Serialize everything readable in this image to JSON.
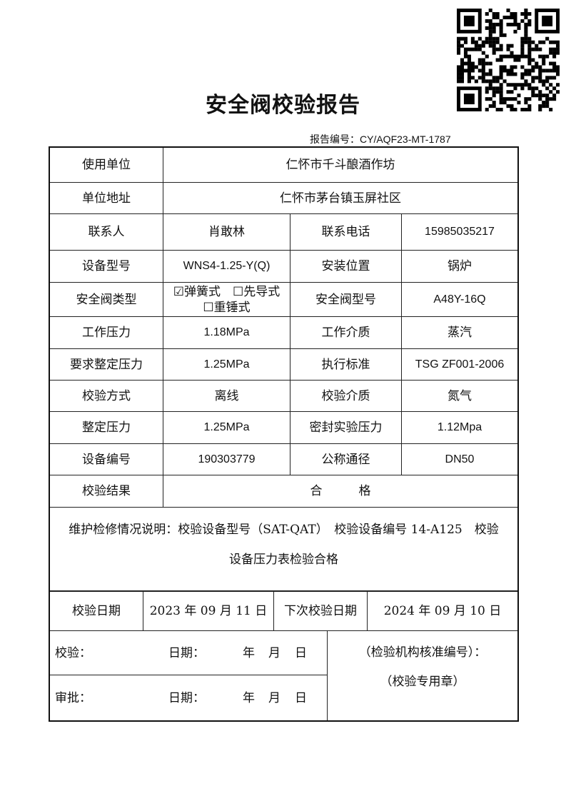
{
  "title": "安全阀校验报告",
  "report_no_label": "报告编号：",
  "report_no": "CY/AQF23-MT-1787",
  "rows": {
    "unit_label": "使用单位",
    "unit": "仁怀市千斗酿酒作坊",
    "address_label": "单位地址",
    "address": "仁怀市茅台镇玉屏社区",
    "contact_label": "联系人",
    "contact": "肖敢林",
    "phone_label": "联系电话",
    "phone": "15985035217",
    "model_label": "设备型号",
    "model": "WNS4-1.25-Y(Q)",
    "location_label": "安装位置",
    "location": "锅炉",
    "valve_type_label": "安全阀类型",
    "valve_type_options": [
      "弹簧式",
      "先导式",
      "重锤式"
    ],
    "valve_type_checked": "弹簧式",
    "valve_model_label": "安全阀型号",
    "valve_model": "A48Y-16Q",
    "work_pressure_label": "工作压力",
    "work_pressure": "1.18MPa",
    "medium_label": "工作介质",
    "medium": "蒸汽",
    "req_set_label": "要求整定压力",
    "req_set": "1.25MPa",
    "standard_label": "执行标准",
    "standard": "TSG ZF001-2006",
    "method_label": "校验方式",
    "method": "离线",
    "test_medium_label": "校验介质",
    "test_medium": "氮气",
    "set_label": "整定压力",
    "set": "1.25MPa",
    "seal_label": "密封实验压力",
    "seal": "1.12Mpa",
    "serial_label": "设备编号",
    "serial": "190303779",
    "dn_label": "公称通径",
    "dn": "DN50",
    "result_label": "校验结果",
    "result": "合　　　格"
  },
  "note": {
    "line1": "维护检修情况说明：校验设备型号（SAT-QAT）　校验设备编号 14-A125　校验",
    "line2": "设备压力表检验合格"
  },
  "dates": {
    "test_label": "校验日期",
    "test": "2023 年 09 月 11 日",
    "next_label": "下次校验日期",
    "next": "2024 年 09 月 10 日"
  },
  "sign": {
    "check": "校验：",
    "approve": "审批：",
    "date": "日期：",
    "y": "年",
    "m": "月",
    "d": "日",
    "org": "（检验机构核准编号）：",
    "stamp": "（校验专用章）"
  }
}
